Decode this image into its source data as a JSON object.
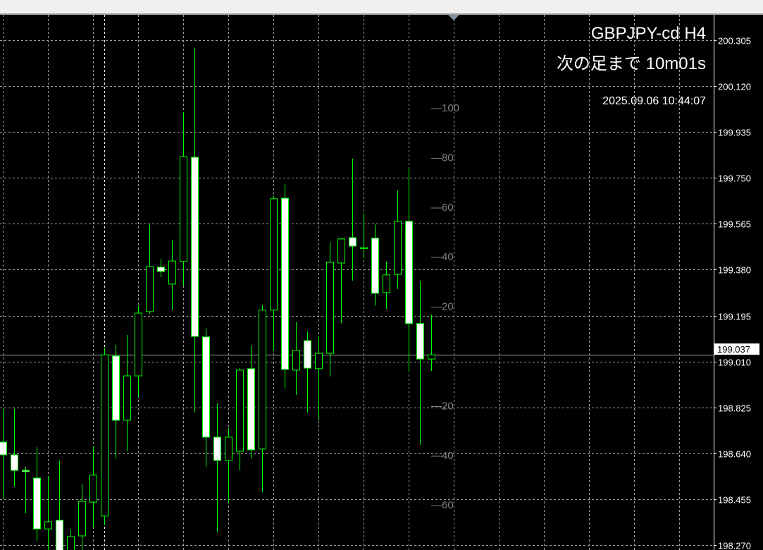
{
  "header": {
    "symbol_timeframe": "GBPJPY-cd H4",
    "countdown": "次の足まで 10m01s",
    "server_time": "2025.09.06 10:44:07"
  },
  "colors": {
    "background": "#000000",
    "grid": "#c0c0c0",
    "candle_outline": "#00ff00",
    "bear_body": "#ffffff",
    "bull_body": "#000000",
    "bid_line": "#a0a0a0",
    "oscillator_labels": "#808080"
  },
  "chart_data": {
    "type": "candlestick",
    "title": "GBPJPY-cd H4",
    "ylim": [
      198.27,
      200.305
    ],
    "grid": true,
    "y_ticks": [
      "200.305",
      "200.120",
      "199.935",
      "199.750",
      "199.565",
      "199.380",
      "199.195",
      "199.010",
      "198.825",
      "198.640",
      "198.455",
      "198.270"
    ],
    "current_price": "199.037",
    "candles": [
      {
        "o": 198.685,
        "h": 198.819,
        "l": 198.458,
        "c": 198.634
      },
      {
        "o": 198.634,
        "h": 198.819,
        "l": 198.506,
        "c": 198.571
      },
      {
        "o": 198.571,
        "h": 198.586,
        "l": 198.398,
        "c": 198.566
      },
      {
        "o": 198.54,
        "h": 198.665,
        "l": 198.287,
        "c": 198.335
      },
      {
        "o": 198.335,
        "h": 198.549,
        "l": 198.236,
        "c": 198.364
      },
      {
        "o": 198.37,
        "h": 198.611,
        "l": 198.193,
        "c": 198.222
      },
      {
        "o": 198.222,
        "h": 198.333,
        "l": 198.193,
        "c": 198.304
      },
      {
        "o": 198.307,
        "h": 198.517,
        "l": 198.25,
        "c": 198.446
      },
      {
        "o": 198.443,
        "h": 198.668,
        "l": 198.344,
        "c": 198.552
      },
      {
        "o": 198.387,
        "h": 199.066,
        "l": 198.35,
        "c": 199.037
      },
      {
        "o": 199.032,
        "h": 199.077,
        "l": 198.62,
        "c": 198.773
      },
      {
        "o": 198.773,
        "h": 199.117,
        "l": 198.648,
        "c": 198.952
      },
      {
        "o": 198.952,
        "h": 199.234,
        "l": 198.867,
        "c": 199.205
      },
      {
        "o": 199.211,
        "h": 199.563,
        "l": 199.202,
        "c": 199.393
      },
      {
        "o": 199.39,
        "h": 199.424,
        "l": 199.35,
        "c": 199.373
      },
      {
        "o": 199.322,
        "h": 199.501,
        "l": 199.217,
        "c": 199.415
      },
      {
        "o": 199.413,
        "h": 200.015,
        "l": 199.316,
        "c": 199.836
      },
      {
        "o": 199.833,
        "h": 200.274,
        "l": 198.804,
        "c": 199.111
      },
      {
        "o": 199.109,
        "h": 199.143,
        "l": 198.586,
        "c": 198.705
      },
      {
        "o": 198.705,
        "h": 198.841,
        "l": 198.321,
        "c": 198.611
      },
      {
        "o": 198.611,
        "h": 198.742,
        "l": 198.443,
        "c": 198.705
      },
      {
        "o": 198.648,
        "h": 198.983,
        "l": 198.571,
        "c": 198.975
      },
      {
        "o": 198.981,
        "h": 199.074,
        "l": 198.62,
        "c": 198.654
      },
      {
        "o": 198.657,
        "h": 199.239,
        "l": 198.483,
        "c": 199.217
      },
      {
        "o": 199.217,
        "h": 199.677,
        "l": 199.052,
        "c": 199.666
      },
      {
        "o": 199.668,
        "h": 199.725,
        "l": 198.901,
        "c": 198.978
      },
      {
        "o": 198.975,
        "h": 199.168,
        "l": 198.875,
        "c": 199.055
      },
      {
        "o": 199.094,
        "h": 199.131,
        "l": 198.804,
        "c": 198.983
      },
      {
        "o": 198.981,
        "h": 199.111,
        "l": 198.773,
        "c": 199.043
      },
      {
        "o": 199.043,
        "h": 199.492,
        "l": 198.949,
        "c": 199.41
      },
      {
        "o": 199.407,
        "h": 199.507,
        "l": 199.165,
        "c": 199.504
      },
      {
        "o": 199.509,
        "h": 199.828,
        "l": 199.336,
        "c": 199.475
      },
      {
        "o": 199.469,
        "h": 199.606,
        "l": 199.427,
        "c": 199.469
      },
      {
        "o": 199.507,
        "h": 199.563,
        "l": 199.236,
        "c": 199.285
      },
      {
        "o": 199.288,
        "h": 199.413,
        "l": 199.222,
        "c": 199.359
      },
      {
        "o": 199.361,
        "h": 199.7,
        "l": 199.302,
        "c": 199.575
      },
      {
        "o": 199.575,
        "h": 199.793,
        "l": 198.969,
        "c": 199.163
      },
      {
        "o": 199.163,
        "h": 199.333,
        "l": 198.674,
        "c": 199.02
      },
      {
        "o": 199.02,
        "h": 199.199,
        "l": 198.972,
        "c": 199.037
      }
    ],
    "overlay_scale": {
      "values": [
        100,
        80,
        60,
        40,
        20,
        -20,
        -40,
        -60
      ],
      "labels": [
        "—100",
        "—80",
        "—60",
        "—40",
        "—20",
        "—20",
        "—40",
        "—60"
      ]
    }
  }
}
